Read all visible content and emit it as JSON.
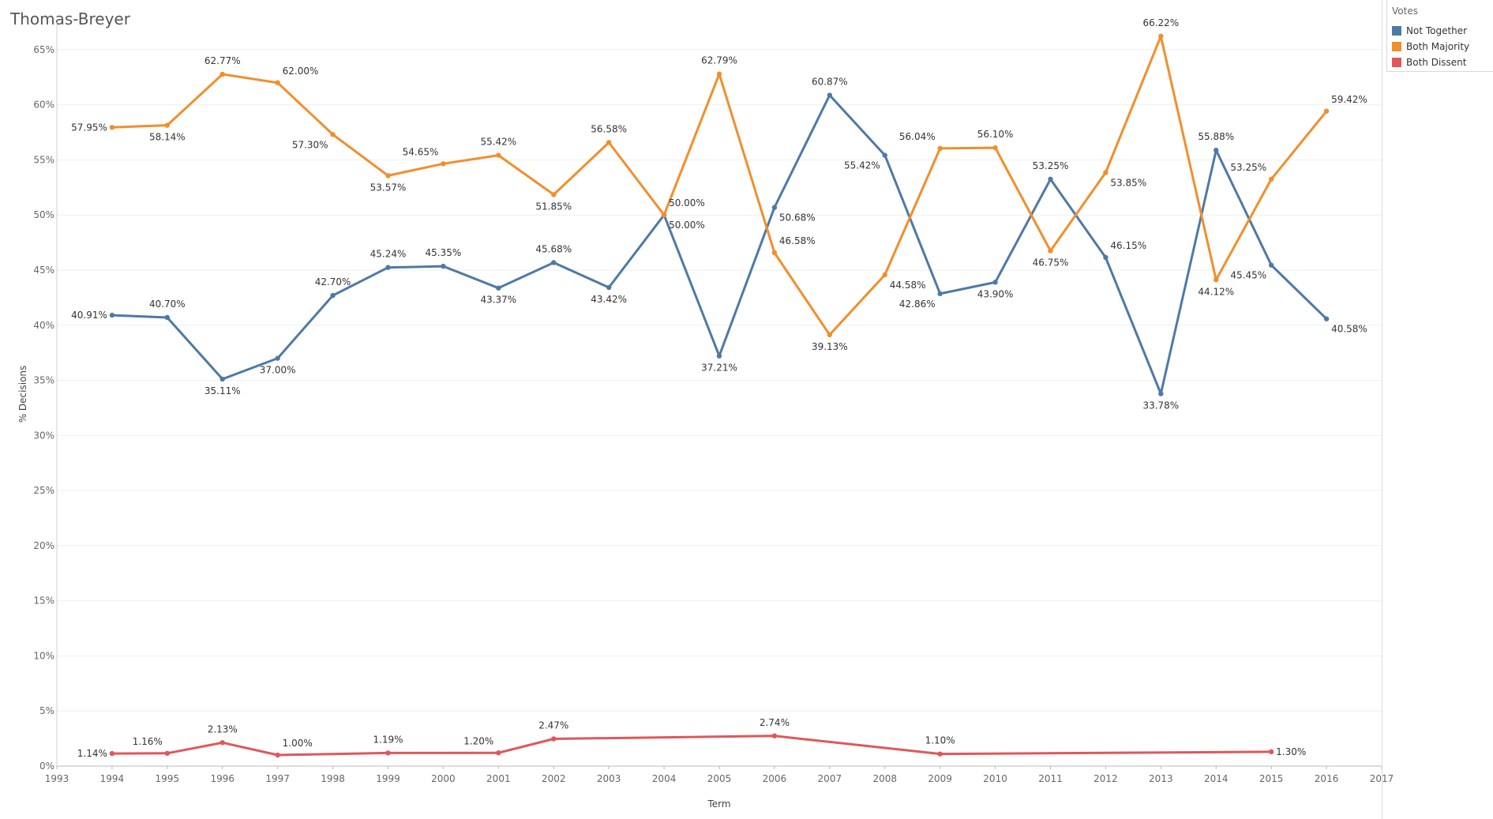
{
  "chart_data": {
    "type": "line",
    "title": "Thomas-Breyer",
    "xlabel": "Term",
    "ylabel": "% Decisions",
    "xlim": [
      1993,
      2017
    ],
    "ylim": [
      0,
      67.5
    ],
    "x_ticks": [
      "1993",
      "1994",
      "1995",
      "1996",
      "1997",
      "1998",
      "1999",
      "2000",
      "2001",
      "2002",
      "2003",
      "2004",
      "2005",
      "2006",
      "2007",
      "2008",
      "2009",
      "2010",
      "2011",
      "2012",
      "2013",
      "2014",
      "2015",
      "2016",
      "2017"
    ],
    "y_ticks": [
      {
        "value": 0,
        "label": "0%"
      },
      {
        "value": 5,
        "label": "5%"
      },
      {
        "value": 10,
        "label": "10%"
      },
      {
        "value": 15,
        "label": "15%"
      },
      {
        "value": 20,
        "label": "20%"
      },
      {
        "value": 25,
        "label": "25%"
      },
      {
        "value": 30,
        "label": "30%"
      },
      {
        "value": 35,
        "label": "35%"
      },
      {
        "value": 40,
        "label": "40%"
      },
      {
        "value": 45,
        "label": "45%"
      },
      {
        "value": 50,
        "label": "50%"
      },
      {
        "value": 55,
        "label": "55%"
      },
      {
        "value": 60,
        "label": "60%"
      },
      {
        "value": 65,
        "label": "65%"
      }
    ],
    "legend": {
      "title": "Votes",
      "position": "top-right",
      "entries": [
        {
          "label": "Not Together",
          "color": "#4e79a7"
        },
        {
          "label": "Both Majority",
          "color": "#f28e2b"
        },
        {
          "label": "Both Dissent",
          "color": "#e15759"
        }
      ]
    },
    "series": [
      {
        "name": "Not Together",
        "color": "#4e79a7",
        "points": [
          {
            "x": 1994,
            "y": 40.91,
            "label": "40.91%",
            "pos": "left"
          },
          {
            "x": 1995,
            "y": 40.7,
            "label": "40.70%",
            "pos": "above"
          },
          {
            "x": 1996,
            "y": 35.11,
            "label": "35.11%",
            "pos": "below"
          },
          {
            "x": 1997,
            "y": 37.0,
            "label": "37.00%",
            "pos": "below"
          },
          {
            "x": 1998,
            "y": 42.7,
            "label": "42.70%",
            "pos": "above"
          },
          {
            "x": 1999,
            "y": 45.24,
            "label": "45.24%",
            "pos": "above"
          },
          {
            "x": 2000,
            "y": 45.35,
            "label": "45.35%",
            "pos": "above"
          },
          {
            "x": 2001,
            "y": 43.37,
            "label": "43.37%",
            "pos": "below"
          },
          {
            "x": 2002,
            "y": 45.68,
            "label": "45.68%",
            "pos": "above"
          },
          {
            "x": 2003,
            "y": 43.42,
            "label": "43.42%",
            "pos": "below"
          },
          {
            "x": 2004,
            "y": 50.0,
            "label": "50.00%",
            "pos": "below-right"
          },
          {
            "x": 2005,
            "y": 37.21,
            "label": "37.21%",
            "pos": "below"
          },
          {
            "x": 2006,
            "y": 50.68,
            "label": "50.68%",
            "pos": "below-right"
          },
          {
            "x": 2007,
            "y": 60.87,
            "label": "60.87%",
            "pos": "above"
          },
          {
            "x": 2008,
            "y": 55.42,
            "label": "55.42%",
            "pos": "below-left"
          },
          {
            "x": 2009,
            "y": 42.86,
            "label": "42.86%",
            "pos": "below-left"
          },
          {
            "x": 2010,
            "y": 43.9,
            "label": "43.90%",
            "pos": "below"
          },
          {
            "x": 2011,
            "y": 53.25,
            "label": "53.25%",
            "pos": "above"
          },
          {
            "x": 2012,
            "y": 46.15,
            "label": "46.15%",
            "pos": "above-right"
          },
          {
            "x": 2013,
            "y": 33.78,
            "label": "33.78%",
            "pos": "below"
          },
          {
            "x": 2014,
            "y": 55.88,
            "label": "55.88%",
            "pos": "above"
          },
          {
            "x": 2015,
            "y": 45.45,
            "label": "45.45%",
            "pos": "below-left"
          },
          {
            "x": 2016,
            "y": 40.58,
            "label": "40.58%",
            "pos": "below-right"
          }
        ]
      },
      {
        "name": "Both Majority",
        "color": "#f28e2b",
        "points": [
          {
            "x": 1994,
            "y": 57.95,
            "label": "57.95%",
            "pos": "left"
          },
          {
            "x": 1995,
            "y": 58.14,
            "label": "58.14%",
            "pos": "below"
          },
          {
            "x": 1996,
            "y": 62.77,
            "label": "62.77%",
            "pos": "above"
          },
          {
            "x": 1997,
            "y": 62.0,
            "label": "62.00%",
            "pos": "above-right"
          },
          {
            "x": 1998,
            "y": 57.3,
            "label": "57.30%",
            "pos": "below-left"
          },
          {
            "x": 1999,
            "y": 53.57,
            "label": "53.57%",
            "pos": "below"
          },
          {
            "x": 2000,
            "y": 54.65,
            "label": "54.65%",
            "pos": "above-left"
          },
          {
            "x": 2001,
            "y": 55.42,
            "label": "55.42%",
            "pos": "above"
          },
          {
            "x": 2002,
            "y": 51.85,
            "label": "51.85%",
            "pos": "below"
          },
          {
            "x": 2003,
            "y": 56.58,
            "label": "56.58%",
            "pos": "above"
          },
          {
            "x": 2004,
            "y": 50.0,
            "label": "50.00%",
            "pos": "above-right"
          },
          {
            "x": 2005,
            "y": 62.79,
            "label": "62.79%",
            "pos": "above"
          },
          {
            "x": 2006,
            "y": 46.58,
            "label": "46.58%",
            "pos": "above-right"
          },
          {
            "x": 2007,
            "y": 39.13,
            "label": "39.13%",
            "pos": "below"
          },
          {
            "x": 2008,
            "y": 44.58,
            "label": "44.58%",
            "pos": "below-right"
          },
          {
            "x": 2009,
            "y": 56.04,
            "label": "56.04%",
            "pos": "above-left"
          },
          {
            "x": 2010,
            "y": 56.1,
            "label": "56.10%",
            "pos": "above"
          },
          {
            "x": 2011,
            "y": 46.75,
            "label": "46.75%",
            "pos": "below"
          },
          {
            "x": 2012,
            "y": 53.85,
            "label": "53.85%",
            "pos": "below-right"
          },
          {
            "x": 2013,
            "y": 66.22,
            "label": "66.22%",
            "pos": "above"
          },
          {
            "x": 2014,
            "y": 44.12,
            "label": "44.12%",
            "pos": "below"
          },
          {
            "x": 2015,
            "y": 53.25,
            "label": "53.25%",
            "pos": "above-left"
          },
          {
            "x": 2016,
            "y": 59.42,
            "label": "59.42%",
            "pos": "above-right"
          }
        ]
      },
      {
        "name": "Both Dissent",
        "color": "#e15759",
        "points": [
          {
            "x": 1994,
            "y": 1.14,
            "label": "1.14%",
            "pos": "left"
          },
          {
            "x": 1995,
            "y": 1.16,
            "label": "1.16%",
            "pos": "above-left"
          },
          {
            "x": 1996,
            "y": 2.13,
            "label": "2.13%",
            "pos": "above"
          },
          {
            "x": 1997,
            "y": 1.0,
            "label": "1.00%",
            "pos": "above-right"
          },
          {
            "x": 1999,
            "y": 1.19,
            "label": "1.19%",
            "pos": "above"
          },
          {
            "x": 2001,
            "y": 1.2,
            "label": "1.20%",
            "pos": "above-left"
          },
          {
            "x": 2002,
            "y": 2.47,
            "label": "2.47%",
            "pos": "above"
          },
          {
            "x": 2006,
            "y": 2.74,
            "label": "2.74%",
            "pos": "above"
          },
          {
            "x": 2009,
            "y": 1.1,
            "label": "1.10%",
            "pos": "above"
          },
          {
            "x": 2015,
            "y": 1.3,
            "label": "1.30%",
            "pos": "right"
          }
        ]
      }
    ]
  }
}
